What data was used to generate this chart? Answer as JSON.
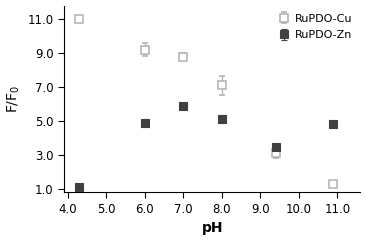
{
  "cu_x": [
    4.3,
    6.0,
    7.0,
    8.0,
    9.4,
    10.9
  ],
  "cu_y": [
    11.0,
    9.2,
    8.8,
    7.1,
    3.1,
    1.3
  ],
  "cu_yerr": [
    0.18,
    0.38,
    0.22,
    0.55,
    0.28,
    0.12
  ],
  "zn_x": [
    4.3,
    6.0,
    7.0,
    8.0,
    9.4,
    10.9
  ],
  "zn_y": [
    1.15,
    4.9,
    5.9,
    5.1,
    3.45,
    4.85
  ],
  "zn_yerr": [
    0.06,
    0.14,
    0.18,
    0.18,
    0.2,
    0.1
  ],
  "xlabel": "pH",
  "ylabel": "F/F$_0$",
  "xlim": [
    3.9,
    11.6
  ],
  "ylim": [
    0.8,
    11.8
  ],
  "xticks": [
    4.0,
    5.0,
    6.0,
    7.0,
    8.0,
    9.0,
    10.0,
    11.0
  ],
  "yticks": [
    1.0,
    3.0,
    5.0,
    7.0,
    9.0,
    11.0
  ],
  "legend_cu": "RuPDO-Cu",
  "legend_zn": "RuPDO-Zn",
  "marker_size": 6,
  "capsize": 2.5,
  "elinewidth": 0.9,
  "cu_marker_color": "#b0b0b0",
  "zn_marker_color": "#404040"
}
